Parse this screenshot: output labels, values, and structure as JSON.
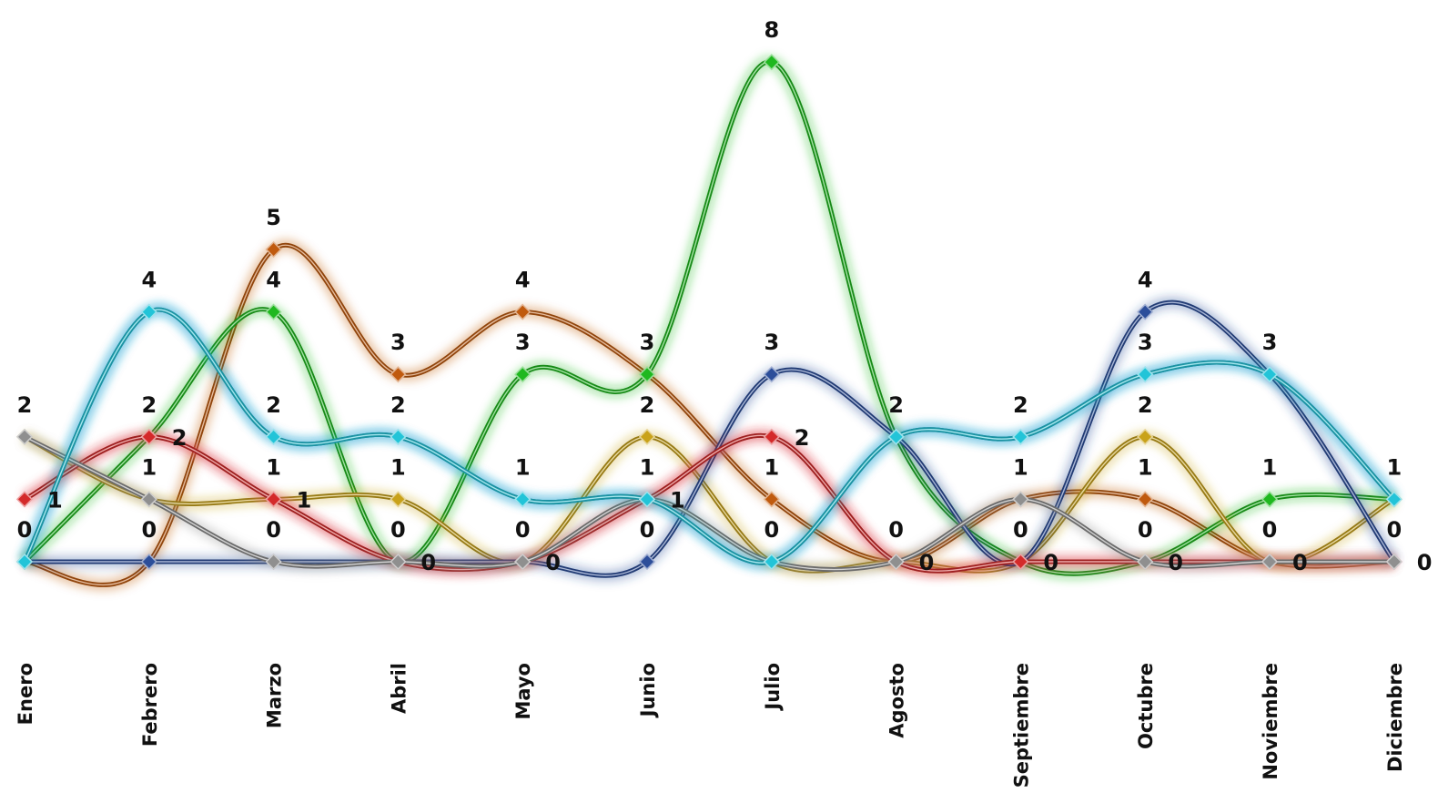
{
  "chart_data": {
    "type": "line",
    "smooth": true,
    "categories": [
      "Enero",
      "Febrero",
      "Marzo",
      "Abril",
      "Mayo",
      "Junio",
      "Julio",
      "Agosto",
      "Septiembre",
      "Octubre",
      "Noviembre",
      "Diciembre"
    ],
    "ylim": [
      0,
      8
    ],
    "grid": false,
    "legend": "none",
    "series": [
      {
        "color": "#2f7dd1",
        "values": [
          0,
          4,
          2,
          2,
          1,
          1,
          0,
          2,
          2,
          3,
          3,
          1
        ]
      },
      {
        "color": "#c05a0e",
        "values": [
          0,
          0,
          5,
          3,
          4,
          3,
          1,
          0,
          1,
          1,
          0,
          0
        ]
      },
      {
        "color": "#1fb81f",
        "values": [
          0,
          2,
          4,
          0,
          3,
          3,
          8,
          2,
          0,
          0,
          1,
          1
        ]
      },
      {
        "color": "#c9a21a",
        "values": [
          2,
          1,
          1,
          1,
          0,
          2,
          0,
          0,
          0,
          2,
          0,
          1
        ]
      },
      {
        "color": "#f08a9a",
        "values": [
          1,
          2,
          1,
          0,
          0,
          1,
          2,
          0,
          0,
          0,
          0,
          0
        ]
      },
      {
        "color": "#2c4e9a",
        "values": [
          0,
          0,
          0,
          0,
          0,
          0,
          3,
          2,
          0,
          4,
          3,
          0
        ]
      },
      {
        "color": "#d42a2a",
        "values": [
          1,
          2,
          1,
          0,
          0,
          1,
          2,
          0,
          0,
          0,
          0,
          0
        ]
      },
      {
        "color": "#8f8f8f",
        "values": [
          2,
          1,
          0,
          0,
          0,
          1,
          0,
          0,
          1,
          0,
          0,
          0
        ]
      },
      {
        "color": "#22c4d8",
        "values": [
          0,
          4,
          2,
          2,
          1,
          1,
          0,
          2,
          2,
          3,
          3,
          1
        ]
      }
    ],
    "value_labels": [
      {
        "text": "2",
        "cat": 0,
        "v": 2,
        "side": "top"
      },
      {
        "text": "1",
        "cat": 0,
        "v": 1,
        "side": "right"
      },
      {
        "text": "0",
        "cat": 0,
        "v": 0,
        "side": "top"
      },
      {
        "text": "4",
        "cat": 1,
        "v": 4,
        "side": "top"
      },
      {
        "text": "2",
        "cat": 1,
        "v": 2,
        "side": "top"
      },
      {
        "text": "2",
        "cat": 1,
        "v": 2,
        "side": "right"
      },
      {
        "text": "1",
        "cat": 1,
        "v": 1,
        "side": "top"
      },
      {
        "text": "0",
        "cat": 1,
        "v": 0,
        "side": "top"
      },
      {
        "text": "5",
        "cat": 2,
        "v": 5,
        "side": "top"
      },
      {
        "text": "4",
        "cat": 2,
        "v": 4,
        "side": "top"
      },
      {
        "text": "2",
        "cat": 2,
        "v": 2,
        "side": "top"
      },
      {
        "text": "1",
        "cat": 2,
        "v": 1,
        "side": "top"
      },
      {
        "text": "1",
        "cat": 2,
        "v": 1,
        "side": "right"
      },
      {
        "text": "0",
        "cat": 2,
        "v": 0,
        "side": "top"
      },
      {
        "text": "3",
        "cat": 3,
        "v": 3,
        "side": "top"
      },
      {
        "text": "2",
        "cat": 3,
        "v": 2,
        "side": "top"
      },
      {
        "text": "1",
        "cat": 3,
        "v": 1,
        "side": "top"
      },
      {
        "text": "0",
        "cat": 3,
        "v": 0,
        "side": "top"
      },
      {
        "text": "0",
        "cat": 3,
        "v": 0,
        "side": "right"
      },
      {
        "text": "4",
        "cat": 4,
        "v": 4,
        "side": "top"
      },
      {
        "text": "3",
        "cat": 4,
        "v": 3,
        "side": "top"
      },
      {
        "text": "1",
        "cat": 4,
        "v": 1,
        "side": "top"
      },
      {
        "text": "0",
        "cat": 4,
        "v": 0,
        "side": "top"
      },
      {
        "text": "0",
        "cat": 4,
        "v": 0,
        "side": "right"
      },
      {
        "text": "3",
        "cat": 5,
        "v": 3,
        "side": "top"
      },
      {
        "text": "2",
        "cat": 5,
        "v": 2,
        "side": "top"
      },
      {
        "text": "1",
        "cat": 5,
        "v": 1,
        "side": "top"
      },
      {
        "text": "1",
        "cat": 5,
        "v": 1,
        "side": "right"
      },
      {
        "text": "0",
        "cat": 5,
        "v": 0,
        "side": "top"
      },
      {
        "text": "8",
        "cat": 6,
        "v": 8,
        "side": "top"
      },
      {
        "text": "3",
        "cat": 6,
        "v": 3,
        "side": "top"
      },
      {
        "text": "2",
        "cat": 6,
        "v": 2,
        "side": "right"
      },
      {
        "text": "1",
        "cat": 6,
        "v": 1,
        "side": "top"
      },
      {
        "text": "0",
        "cat": 6,
        "v": 0,
        "side": "top"
      },
      {
        "text": "2",
        "cat": 7,
        "v": 2,
        "side": "top"
      },
      {
        "text": "0",
        "cat": 7,
        "v": 0,
        "side": "top"
      },
      {
        "text": "0",
        "cat": 7,
        "v": 0,
        "side": "right"
      },
      {
        "text": "2",
        "cat": 8,
        "v": 2,
        "side": "top"
      },
      {
        "text": "1",
        "cat": 8,
        "v": 1,
        "side": "top"
      },
      {
        "text": "0",
        "cat": 8,
        "v": 0,
        "side": "top"
      },
      {
        "text": "0",
        "cat": 8,
        "v": 0,
        "side": "right"
      },
      {
        "text": "4",
        "cat": 9,
        "v": 4,
        "side": "top"
      },
      {
        "text": "3",
        "cat": 9,
        "v": 3,
        "side": "top"
      },
      {
        "text": "2",
        "cat": 9,
        "v": 2,
        "side": "top"
      },
      {
        "text": "1",
        "cat": 9,
        "v": 1,
        "side": "top"
      },
      {
        "text": "0",
        "cat": 9,
        "v": 0,
        "side": "top"
      },
      {
        "text": "0",
        "cat": 9,
        "v": 0,
        "side": "right"
      },
      {
        "text": "3",
        "cat": 10,
        "v": 3,
        "side": "top"
      },
      {
        "text": "1",
        "cat": 10,
        "v": 1,
        "side": "top"
      },
      {
        "text": "0",
        "cat": 10,
        "v": 0,
        "side": "top"
      },
      {
        "text": "0",
        "cat": 10,
        "v": 0,
        "side": "right"
      },
      {
        "text": "1",
        "cat": 11,
        "v": 1,
        "side": "top"
      },
      {
        "text": "0",
        "cat": 11,
        "v": 0,
        "side": "top"
      },
      {
        "text": "0",
        "cat": 11,
        "v": 0,
        "side": "right"
      }
    ]
  }
}
